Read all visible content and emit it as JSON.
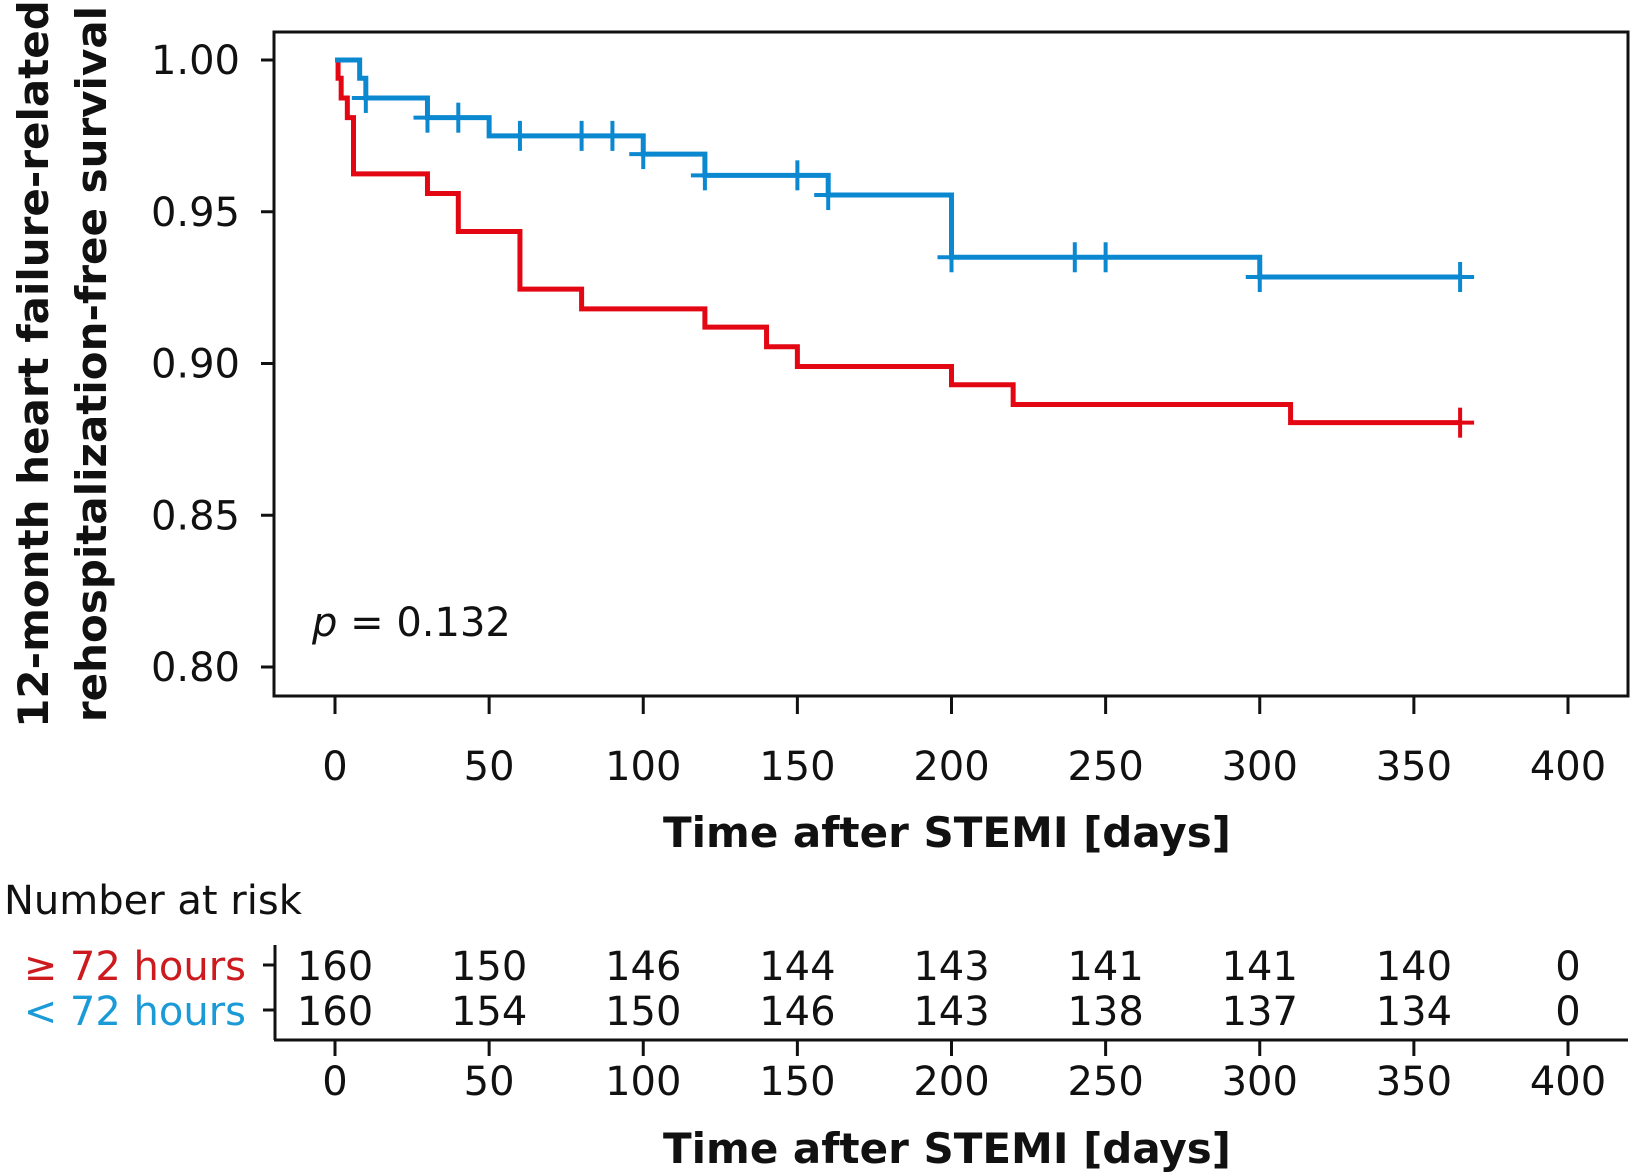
{
  "chart_data": {
    "type": "line",
    "subtype": "kaplan-meier step",
    "title": "",
    "ylabel_lines": [
      "12-month heart failure-related",
      "rehospitalization-free survival"
    ],
    "xlabel": "Time after STEMI [days]",
    "xlim": [
      0,
      400
    ],
    "ylim": [
      0.79,
      1.01
    ],
    "x_ticks": [
      0,
      50,
      100,
      150,
      200,
      250,
      300,
      350,
      400
    ],
    "x_tick_labels": [
      "0",
      "50",
      "100",
      "150",
      "200",
      "250",
      "300",
      "350",
      "400"
    ],
    "y_ticks": [
      0.8,
      0.85,
      0.9,
      0.95,
      1.0
    ],
    "y_tick_labels": [
      "0.80",
      "0.85",
      "0.90",
      "0.95",
      "1.00"
    ],
    "grid": false,
    "annotation": {
      "p_symbol": "p",
      "text": " = 0.132"
    },
    "series": [
      {
        "name": "≥ 72 hours",
        "color": "#e30613",
        "label_color": "#cc1a1f",
        "steps": [
          [
            0,
            1.0
          ],
          [
            1,
            0.994
          ],
          [
            2,
            0.9875
          ],
          [
            4,
            0.981
          ],
          [
            6,
            0.9625
          ],
          [
            30,
            0.956
          ],
          [
            40,
            0.9435
          ],
          [
            60,
            0.9245
          ],
          [
            80,
            0.918
          ],
          [
            120,
            0.912
          ],
          [
            140,
            0.9055
          ],
          [
            150,
            0.899
          ],
          [
            200,
            0.893
          ],
          [
            220,
            0.8865
          ],
          [
            310,
            0.8805
          ],
          [
            365,
            0.8805
          ]
        ],
        "censored": [
          365
        ]
      },
      {
        "name": "< 72 hours",
        "color": "#0b88d0",
        "label_color": "#1a9ad6",
        "steps": [
          [
            0,
            1.0
          ],
          [
            8,
            0.994
          ],
          [
            10,
            0.9875
          ],
          [
            30,
            0.981
          ],
          [
            50,
            0.975
          ],
          [
            100,
            0.969
          ],
          [
            120,
            0.962
          ],
          [
            160,
            0.9555
          ],
          [
            200,
            0.935
          ],
          [
            300,
            0.9285
          ],
          [
            365,
            0.9285
          ]
        ],
        "censored": [
          10,
          30,
          40,
          60,
          80,
          90,
          100,
          120,
          150,
          160,
          200,
          240,
          250,
          300,
          365
        ]
      }
    ],
    "risk_table": {
      "title": "Number at risk",
      "times": [
        0,
        50,
        100,
        150,
        200,
        250,
        300,
        350,
        400
      ],
      "rows": [
        {
          "label": "≥ 72 hours",
          "values": [
            "160",
            "150",
            "146",
            "144",
            "143",
            "141",
            "141",
            "140",
            "0"
          ]
        },
        {
          "label": "< 72 hours",
          "values": [
            "160",
            "154",
            "150",
            "146",
            "143",
            "138",
            "137",
            "134",
            "0"
          ]
        }
      ],
      "xlabel": "Time after STEMI [days]"
    }
  }
}
